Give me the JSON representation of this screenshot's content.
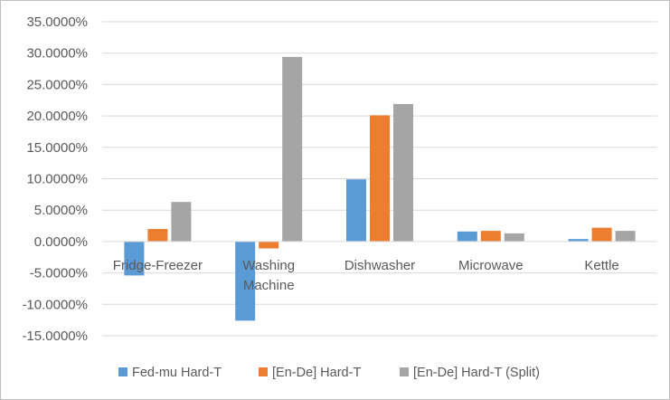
{
  "chart_data": {
    "type": "bar",
    "title": "",
    "xlabel": "",
    "ylabel": "",
    "categories": [
      [
        "Fridge-Freezer"
      ],
      [
        "Washing",
        "Machine"
      ],
      [
        "Dishwasher"
      ],
      [
        "Microwave"
      ],
      [
        "Kettle"
      ]
    ],
    "series": [
      {
        "name": "Fed-mu Hard-T",
        "color": "#5b9bd5",
        "values": [
          -5.4,
          -12.6,
          9.9,
          1.6,
          0.4
        ]
      },
      {
        "name": "[En-De] Hard-T",
        "color": "#ed7d31",
        "values": [
          2.0,
          -1.1,
          20.1,
          1.7,
          2.2
        ]
      },
      {
        "name": "[En-De] Hard-T (Split)",
        "color": "#a5a5a5",
        "values": [
          6.3,
          29.4,
          21.9,
          1.3,
          1.7
        ]
      }
    ],
    "ylim": [
      -15,
      35
    ],
    "yticks": [
      -15,
      -10,
      -5,
      0,
      5,
      10,
      15,
      20,
      25,
      30,
      35
    ],
    "ytick_labels": [
      "-15.0000%",
      "-10.0000%",
      "-5.0000%",
      "0.0000%",
      "5.0000%",
      "10.0000%",
      "15.0000%",
      "20.0000%",
      "25.0000%",
      "30.0000%",
      "35.0000%"
    ],
    "grid": true,
    "legend_position": "bottom"
  }
}
